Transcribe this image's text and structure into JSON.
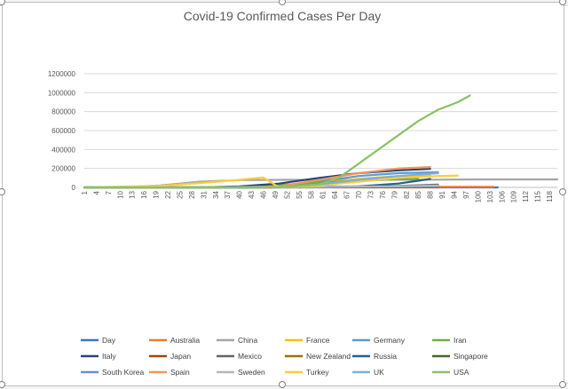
{
  "chart_data": {
    "type": "line",
    "title": "Covid-19 Confirmed Cases Per Day",
    "xlabel": "",
    "ylabel": "",
    "ylim": [
      0,
      1200000
    ],
    "yticks": [
      0,
      200000,
      400000,
      600000,
      800000,
      1000000,
      1200000
    ],
    "xlim": [
      1,
      120
    ],
    "xticks": [
      1,
      4,
      7,
      10,
      13,
      16,
      19,
      22,
      25,
      28,
      31,
      34,
      37,
      40,
      43,
      46,
      49,
      52,
      55,
      58,
      61,
      64,
      67,
      70,
      73,
      76,
      79,
      82,
      85,
      88,
      91,
      94,
      97,
      100,
      103,
      106,
      109,
      112,
      115,
      118
    ],
    "grid": true,
    "legend_position": "bottom",
    "series": [
      {
        "name": "Day",
        "color": "#4472c4",
        "x": [
          1,
          40,
          80,
          105
        ],
        "values": [
          0,
          0,
          0,
          0
        ]
      },
      {
        "name": "Australia",
        "color": "#ed7d31",
        "x": [
          1,
          20,
          40,
          60,
          80,
          100,
          104
        ],
        "values": [
          0,
          0,
          1000,
          5000,
          6500,
          6900,
          7000
        ]
      },
      {
        "name": "China",
        "color": "#a5a5a5",
        "x": [
          1,
          10,
          20,
          30,
          40,
          50,
          70,
          90,
          96,
          100,
          120
        ],
        "values": [
          0,
          1000,
          20000,
          60000,
          77000,
          80000,
          81000,
          82000,
          83000,
          84000,
          84000
        ]
      },
      {
        "name": "France",
        "color": "#ffc000",
        "x": [
          1,
          30,
          40,
          50,
          60,
          70,
          80,
          85,
          88
        ],
        "values": [
          0,
          0,
          0,
          5000,
          45000,
          90000,
          120000,
          125000,
          128000
        ]
      },
      {
        "name": "Germany",
        "color": "#5b9bd5",
        "x": [
          1,
          30,
          40,
          50,
          60,
          70,
          80,
          90
        ],
        "values": [
          0,
          0,
          0,
          5000,
          60000,
          120000,
          150000,
          160000
        ]
      },
      {
        "name": "Iran",
        "color": "#70ad47",
        "x": [
          1,
          20,
          30,
          40,
          50,
          60,
          70,
          80,
          85
        ],
        "values": [
          0,
          0,
          100,
          5000,
          25000,
          50000,
          70000,
          85000,
          90000
        ]
      },
      {
        "name": "Italy",
        "color": "#264478",
        "x": [
          1,
          20,
          30,
          40,
          50,
          60,
          70,
          80,
          88
        ],
        "values": [
          0,
          0,
          100,
          10000,
          40000,
          100000,
          150000,
          180000,
          195000
        ]
      },
      {
        "name": "Japan",
        "color": "#9e480e",
        "x": [
          1,
          20,
          40,
          60,
          80,
          90
        ],
        "values": [
          0,
          0,
          500,
          2000,
          10000,
          14000
        ]
      },
      {
        "name": "Mexico",
        "color": "#636363",
        "x": [
          1,
          40,
          60,
          80,
          90
        ],
        "values": [
          0,
          0,
          1000,
          15000,
          30000
        ]
      },
      {
        "name": "New Zealand",
        "color": "#997300",
        "x": [
          1,
          40,
          60,
          80,
          90
        ],
        "values": [
          0,
          0,
          500,
          1400,
          1500
        ]
      },
      {
        "name": "Russia",
        "color": "#255e91",
        "x": [
          1,
          40,
          60,
          70,
          80,
          85,
          88
        ],
        "values": [
          0,
          0,
          2000,
          10000,
          40000,
          70000,
          90000
        ]
      },
      {
        "name": "Singapore",
        "color": "#43682b",
        "x": [
          1,
          40,
          60,
          80,
          90
        ],
        "values": [
          0,
          0,
          1000,
          10000,
          20000
        ]
      },
      {
        "name": "South Korea",
        "color": "#698ed0",
        "x": [
          1,
          20,
          30,
          40,
          50,
          60,
          80,
          90
        ],
        "values": [
          0,
          0,
          1000,
          6000,
          8000,
          9500,
          10500,
          10800
        ]
      },
      {
        "name": "Spain",
        "color": "#f1975a",
        "x": [
          1,
          30,
          40,
          50,
          60,
          70,
          80,
          88
        ],
        "values": [
          0,
          0,
          0,
          10000,
          80000,
          150000,
          200000,
          215000
        ]
      },
      {
        "name": "Sweden",
        "color": "#b7b7b7",
        "x": [
          1,
          40,
          60,
          80,
          90
        ],
        "values": [
          0,
          0,
          3000,
          12000,
          20000
        ]
      },
      {
        "name": "Turkey",
        "color": "#ffcd33",
        "x": [
          1,
          20,
          30,
          40,
          46,
          50,
          60,
          70,
          80,
          90,
          95
        ],
        "values": [
          0,
          15000,
          45000,
          80000,
          105000,
          0,
          20000,
          60000,
          100000,
          120000,
          125000
        ]
      },
      {
        "name": "UK",
        "color": "#7cafdd",
        "x": [
          1,
          40,
          50,
          60,
          70,
          80,
          90
        ],
        "values": [
          0,
          0,
          2000,
          30000,
          80000,
          120000,
          150000
        ]
      },
      {
        "name": "USA",
        "color": "#8cc168",
        "x": [
          1,
          40,
          50,
          60,
          65,
          70,
          75,
          80,
          85,
          90,
          95,
          98
        ],
        "values": [
          0,
          0,
          1000,
          30000,
          100000,
          250000,
          400000,
          550000,
          700000,
          820000,
          900000,
          970000
        ]
      }
    ]
  }
}
